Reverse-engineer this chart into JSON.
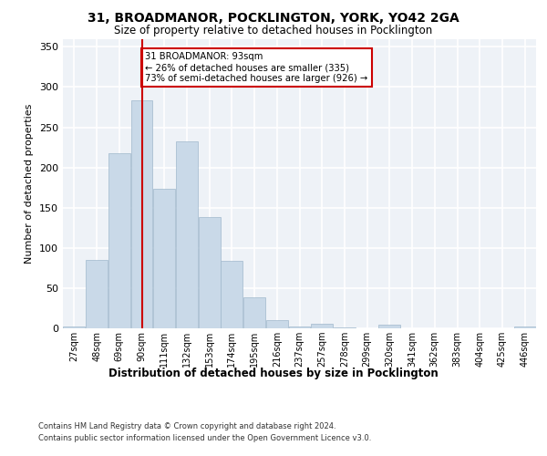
{
  "title_line1": "31, BROADMANOR, POCKLINGTON, YORK, YO42 2GA",
  "title_line2": "Size of property relative to detached houses in Pocklington",
  "xlabel": "Distribution of detached houses by size in Pocklington",
  "ylabel": "Number of detached properties",
  "categories": [
    "27sqm",
    "48sqm",
    "69sqm",
    "90sqm",
    "111sqm",
    "132sqm",
    "153sqm",
    "174sqm",
    "195sqm",
    "216sqm",
    "237sqm",
    "257sqm",
    "278sqm",
    "299sqm",
    "320sqm",
    "341sqm",
    "362sqm",
    "383sqm",
    "404sqm",
    "425sqm",
    "446sqm"
  ],
  "values": [
    2,
    85,
    218,
    283,
    173,
    232,
    138,
    84,
    38,
    10,
    2,
    6,
    1,
    0,
    4,
    0,
    0,
    0,
    0,
    0,
    2
  ],
  "bar_color": "#c9d9e8",
  "bar_edgecolor": "#a0b8cc",
  "vline_x": 3,
  "vline_color": "#cc0000",
  "annotation_text": "31 BROADMANOR: 93sqm\n← 26% of detached houses are smaller (335)\n73% of semi-detached houses are larger (926) →",
  "annotation_box_color": "white",
  "annotation_box_edgecolor": "#cc0000",
  "ylim": [
    0,
    360
  ],
  "yticks": [
    0,
    50,
    100,
    150,
    200,
    250,
    300,
    350
  ],
  "background_color": "#eef2f7",
  "grid_color": "white",
  "footer_line1": "Contains HM Land Registry data © Crown copyright and database right 2024.",
  "footer_line2": "Contains public sector information licensed under the Open Government Licence v3.0."
}
